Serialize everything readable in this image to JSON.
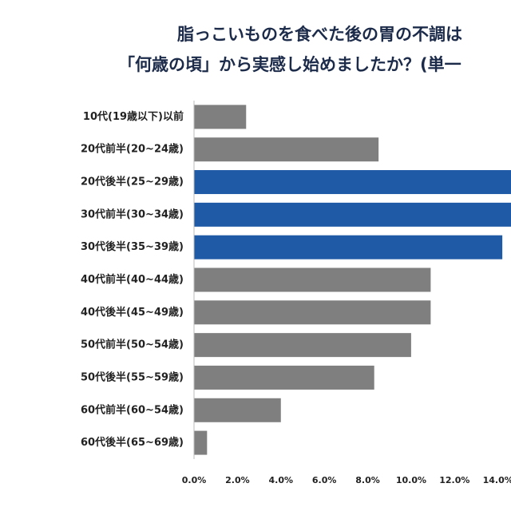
{
  "chart_data": {
    "type": "bar",
    "orientation": "horizontal",
    "title": [
      "脂っこいものを食べた後の胃の不調は",
      "「何歳の頃」から実感し始めましたか？(単一"
    ],
    "categories": [
      "10代(19歳以下)以前",
      "20代前半(20~24歳)",
      "20代後半(25~29歳)",
      "30代前半(30~34歳)",
      "30代後半(35~39歳)",
      "40代前半(40~44歳)",
      "40代後半(45~49歳)",
      "50代前半(50~54歳)",
      "50代後半(55~59歳)",
      "60代前半(60~54歳)",
      "60代後半(65~69歳)"
    ],
    "values": [
      2.4,
      8.5,
      15.0,
      15.2,
      14.2,
      10.9,
      10.9,
      10.0,
      8.3,
      4.0,
      0.6
    ],
    "colors": [
      "#7f7f7f",
      "#7f7f7f",
      "#1f5aa6",
      "#1f5aa6",
      "#1f5aa6",
      "#7f7f7f",
      "#7f7f7f",
      "#7f7f7f",
      "#7f7f7f",
      "#7f7f7f",
      "#7f7f7f"
    ],
    "xlim": [
      0,
      14.6
    ],
    "xticks": [
      {
        "value": 0,
        "label": "0.0%"
      },
      {
        "value": 2,
        "label": "2.0%"
      },
      {
        "value": 4,
        "label": "4.0%"
      },
      {
        "value": 6,
        "label": "6.0%"
      },
      {
        "value": 8,
        "label": "8.0%"
      },
      {
        "value": 10,
        "label": "10.0%"
      },
      {
        "value": 12,
        "label": "12.0%"
      },
      {
        "value": 14,
        "label": "14.0%"
      }
    ]
  }
}
